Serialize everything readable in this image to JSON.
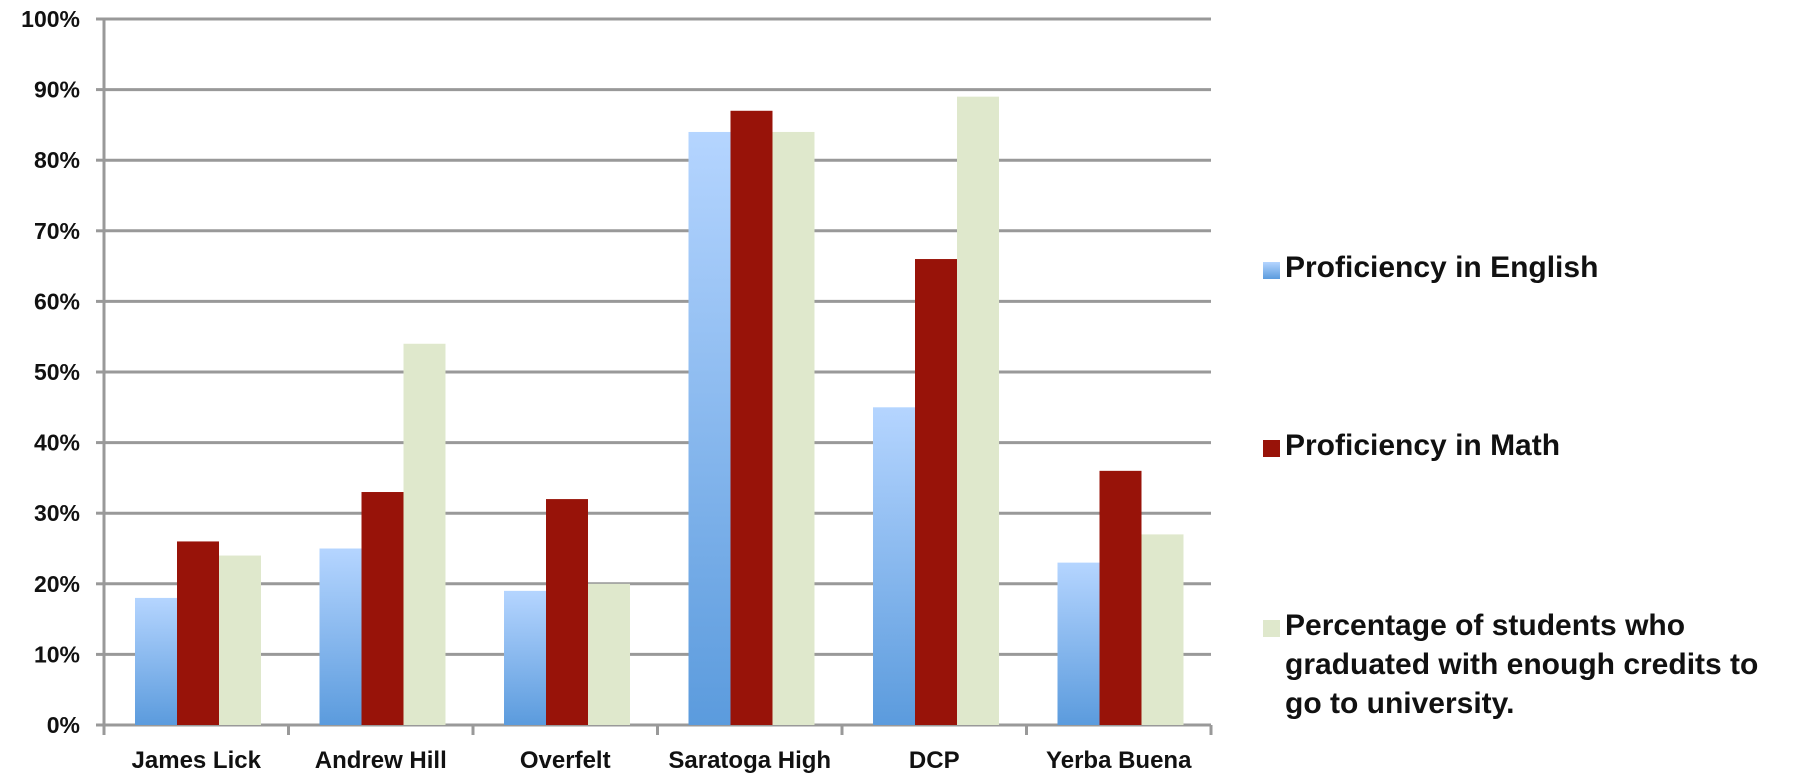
{
  "chart_data": {
    "type": "bar",
    "title": "",
    "xlabel": "",
    "ylabel": "",
    "categories": [
      "James Lick",
      "Andrew Hill",
      "Overfelt",
      "Saratoga High",
      "DCP",
      "Yerba Buena"
    ],
    "series": [
      {
        "name": "Proficiency in English",
        "values": [
          18,
          25,
          19,
          84,
          45,
          23
        ],
        "color": "#6fa8ea",
        "gradient_top": "#b5d5ff",
        "gradient_bottom": "#5b9bdd"
      },
      {
        "name": "Proficiency in Math",
        "values": [
          26,
          33,
          32,
          87,
          66,
          36
        ],
        "color": "#981309"
      },
      {
        "name": "Percentage of students who graduated with enough credits to go to university.",
        "values": [
          24,
          54,
          20,
          84,
          89,
          27
        ],
        "color": "#dfe8cc"
      }
    ],
    "ylim": [
      0,
      100
    ],
    "y_ticks": [
      "0%",
      "10%",
      "20%",
      "30%",
      "40%",
      "50%",
      "60%",
      "70%",
      "80%",
      "90%",
      "100%"
    ],
    "grid": true,
    "gridline_color": "#999999",
    "legend_position": "right",
    "legend_lines": [
      [
        "Proficiency in English"
      ],
      [
        "Proficiency in Math"
      ],
      [
        "Percentage of students who",
        "graduated with enough credits to",
        "go to university."
      ]
    ]
  }
}
